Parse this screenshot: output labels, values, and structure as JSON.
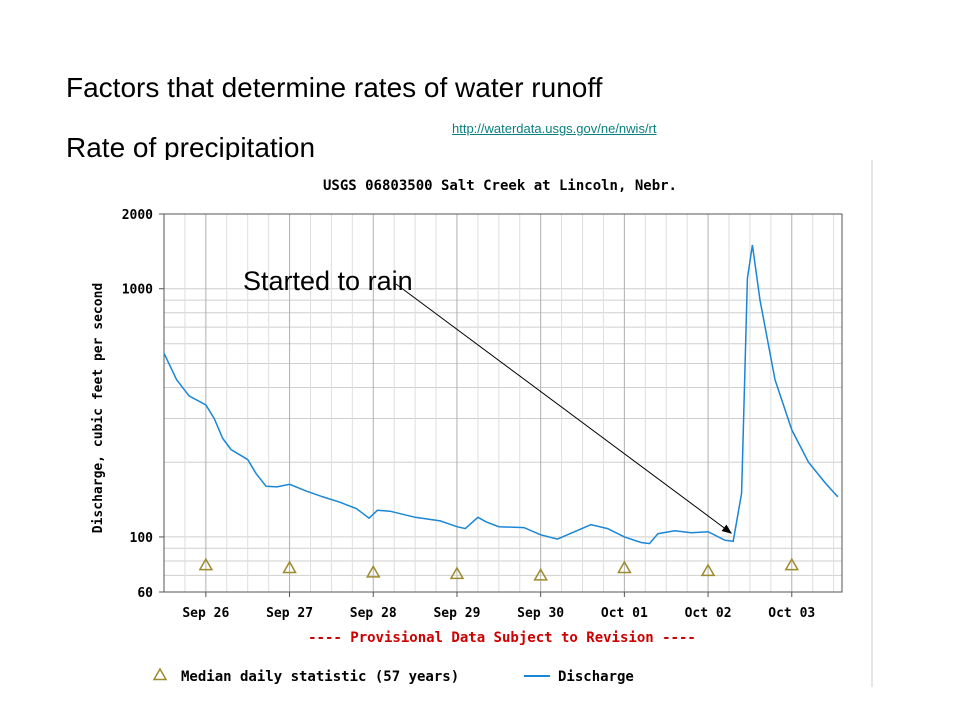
{
  "slide": {
    "title": "Factors that determine rates of water runoff",
    "subtitle": "Rate of precipitation",
    "link": "http://waterdata.usgs.gov/ne/nwis/rt"
  },
  "chart_data": {
    "type": "line",
    "title": "USGS 06803500 Salt Creek at Lincoln, Nebr.",
    "ylabel": "Discharge, cubic feet per second",
    "yscale": "log",
    "ylim": [
      60,
      2000
    ],
    "y_ticks": [
      {
        "value": 2000,
        "label": "2000"
      },
      {
        "value": 1000,
        "label": "1000"
      },
      {
        "value": 100,
        "label": "100"
      },
      {
        "value": 60,
        "label": "60"
      }
    ],
    "x_ticks": [
      "Sep 26",
      "Sep 27",
      "Sep 28",
      "Sep 29",
      "Sep 30",
      "Oct 01",
      "Oct 02",
      "Oct 03"
    ],
    "xlim": [
      -0.5,
      7.6
    ],
    "grid": true,
    "notice": "---- Provisional Data Subject to Revision ----",
    "series": [
      {
        "name": "Discharge",
        "color": "#1a86d6",
        "points": [
          [
            -0.5,
            550
          ],
          [
            -0.35,
            430
          ],
          [
            -0.2,
            370
          ],
          [
            0.0,
            340
          ],
          [
            0.1,
            300
          ],
          [
            0.2,
            250
          ],
          [
            0.3,
            225
          ],
          [
            0.5,
            205
          ],
          [
            0.6,
            180
          ],
          [
            0.72,
            160
          ],
          [
            0.85,
            159
          ],
          [
            1.0,
            163
          ],
          [
            1.2,
            153
          ],
          [
            1.4,
            145
          ],
          [
            1.6,
            138
          ],
          [
            1.8,
            130
          ],
          [
            1.95,
            119
          ],
          [
            2.05,
            128
          ],
          [
            2.2,
            127
          ],
          [
            2.5,
            120
          ],
          [
            2.8,
            116
          ],
          [
            3.0,
            110
          ],
          [
            3.1,
            108
          ],
          [
            3.25,
            120
          ],
          [
            3.35,
            115
          ],
          [
            3.5,
            110
          ],
          [
            3.8,
            109
          ],
          [
            4.0,
            102
          ],
          [
            4.2,
            98
          ],
          [
            4.35,
            103
          ],
          [
            4.6,
            112
          ],
          [
            4.8,
            108
          ],
          [
            5.0,
            100
          ],
          [
            5.2,
            95
          ],
          [
            5.3,
            94
          ],
          [
            5.4,
            103
          ],
          [
            5.6,
            106
          ],
          [
            5.8,
            104
          ],
          [
            6.0,
            105
          ],
          [
            6.2,
            97
          ],
          [
            6.3,
            96
          ],
          [
            6.4,
            150
          ],
          [
            6.47,
            1100
          ],
          [
            6.53,
            1500
          ],
          [
            6.62,
            900
          ],
          [
            6.8,
            430
          ],
          [
            7.0,
            270
          ],
          [
            7.2,
            200
          ],
          [
            7.4,
            165
          ],
          [
            7.55,
            145
          ]
        ]
      }
    ],
    "median_markers": {
      "name": "Median daily statistic (57 years)",
      "color": "#9c8a2e",
      "points": [
        [
          0.0,
          77
        ],
        [
          1.0,
          75
        ],
        [
          2.0,
          72
        ],
        [
          3.0,
          71
        ],
        [
          4.0,
          70
        ],
        [
          5.0,
          75
        ],
        [
          6.0,
          73
        ],
        [
          7.0,
          77
        ]
      ]
    },
    "legend": [
      {
        "marker": "triangle",
        "label": "Median daily statistic (57 years)"
      },
      {
        "marker": "line",
        "label": "Discharge"
      }
    ],
    "annotation": {
      "text": "Started to rain",
      "x": 6.3,
      "y": 98
    }
  }
}
